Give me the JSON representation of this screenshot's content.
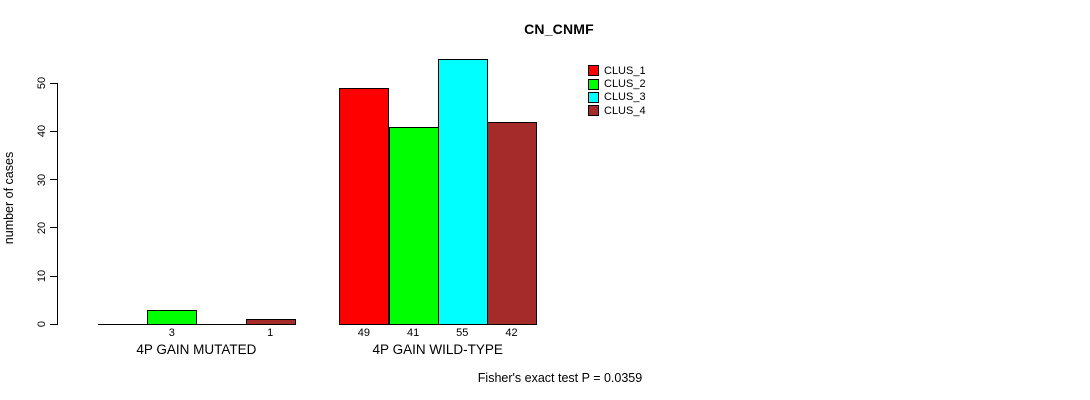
{
  "chart_data": {
    "type": "bar",
    "title": "CN_CNMF",
    "ylabel": "number of cases",
    "xlabel": "",
    "ylim": [
      0,
      55
    ],
    "yticks": [
      0,
      10,
      20,
      30,
      40,
      50
    ],
    "grid": false,
    "legend_position": "top-right",
    "bar_outline_color": "#000000",
    "categories": [
      "4P GAIN MUTATED",
      "4P GAIN WILD-TYPE"
    ],
    "series": [
      {
        "name": "CLUS_1",
        "color": "#ff0000",
        "values": [
          0,
          49
        ]
      },
      {
        "name": "CLUS_2",
        "color": "#00ff00",
        "values": [
          3,
          41
        ]
      },
      {
        "name": "CLUS_3",
        "color": "#00ffff",
        "values": [
          0,
          55
        ]
      },
      {
        "name": "CLUS_4",
        "color": "#a52a2a",
        "values": [
          1,
          42
        ]
      }
    ],
    "bar_value_labels": [
      [
        "",
        "3",
        "",
        "1"
      ],
      [
        "49",
        "41",
        "55",
        "42"
      ]
    ],
    "footnote": "Fisher's exact test P = 0.0359"
  }
}
